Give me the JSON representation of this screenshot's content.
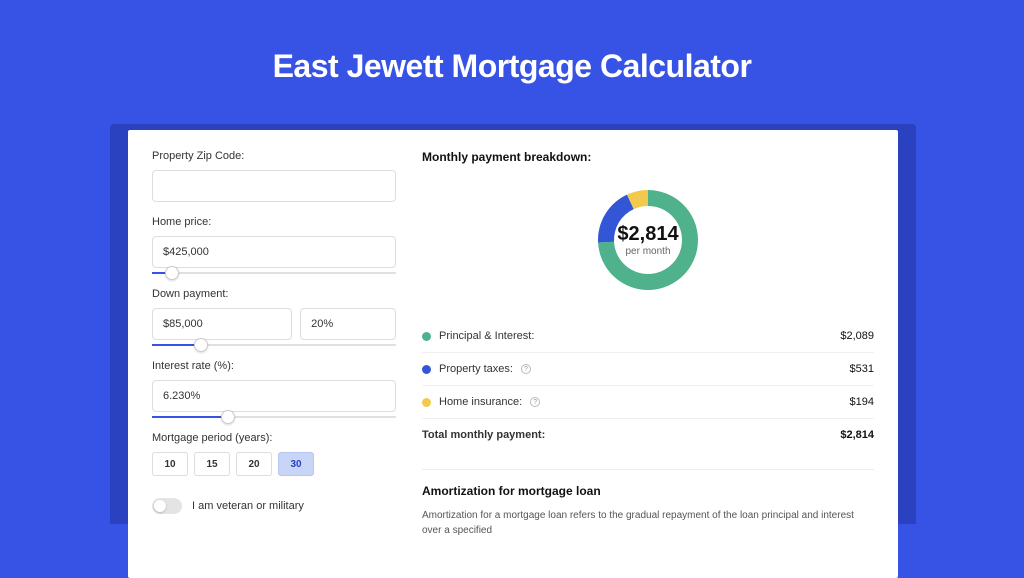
{
  "page": {
    "title": "East Jewett Mortgage Calculator",
    "bg_color": "#3653e5",
    "shadow_color": "#2a42c0",
    "card_bg": "#ffffff"
  },
  "form": {
    "zip": {
      "label": "Property Zip Code:",
      "value": ""
    },
    "home_price": {
      "label": "Home price:",
      "value": "$425,000",
      "slider_pct": 8
    },
    "down_payment": {
      "label": "Down payment:",
      "amount": "$85,000",
      "percent": "20%",
      "slider_pct": 20
    },
    "interest": {
      "label": "Interest rate (%):",
      "value": "6.230%",
      "slider_pct": 31
    },
    "period": {
      "label": "Mortgage period (years):",
      "options": [
        "10",
        "15",
        "20",
        "30"
      ],
      "selected": "30"
    },
    "veteran": {
      "label": "I am veteran or military",
      "on": false
    }
  },
  "breakdown": {
    "title": "Monthly payment breakdown:",
    "donut": {
      "amount": "$2,814",
      "sub": "per month",
      "segments": [
        {
          "name": "principal_interest",
          "color": "#4fb28c",
          "fraction": 0.742
        },
        {
          "name": "property_taxes",
          "color": "#3356d6",
          "fraction": 0.189
        },
        {
          "name": "home_insurance",
          "color": "#f2c94c",
          "fraction": 0.069
        }
      ],
      "radius": 50,
      "thickness": 16
    },
    "rows": [
      {
        "dot": "#4fb28c",
        "label": "Principal & Interest:",
        "help": false,
        "value": "$2,089"
      },
      {
        "dot": "#3356d6",
        "label": "Property taxes:",
        "help": true,
        "value": "$531"
      },
      {
        "dot": "#f2c94c",
        "label": "Home insurance:",
        "help": true,
        "value": "$194"
      }
    ],
    "total": {
      "label": "Total monthly payment:",
      "value": "$2,814"
    }
  },
  "amort": {
    "title": "Amortization for mortgage loan",
    "text": "Amortization for a mortgage loan refers to the gradual repayment of the loan principal and interest over a specified"
  }
}
